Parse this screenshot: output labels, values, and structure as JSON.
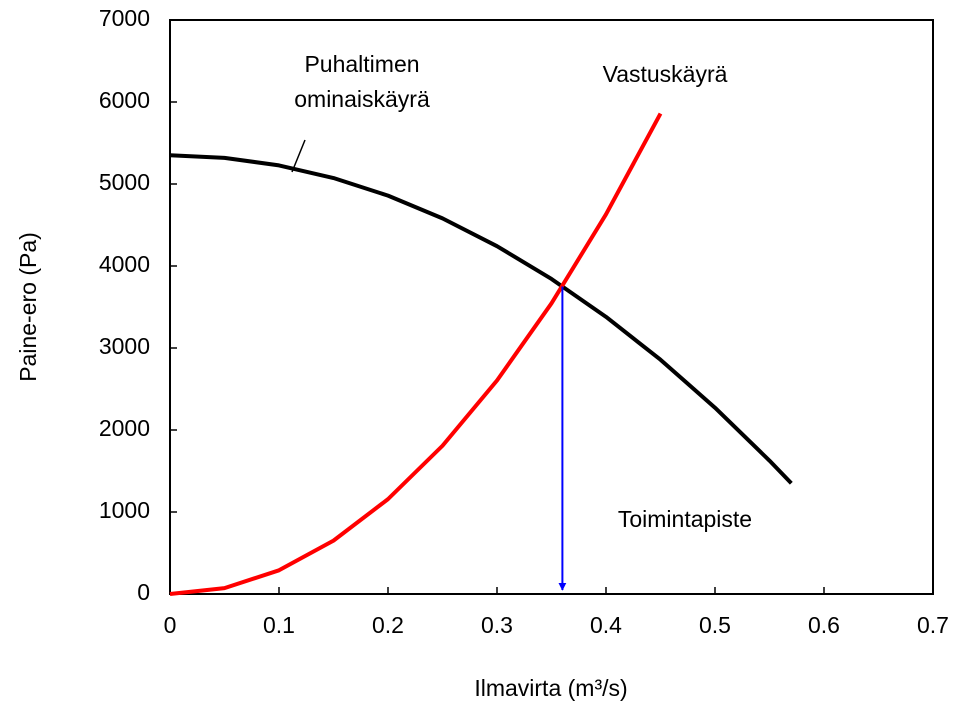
{
  "chart_data": {
    "type": "line",
    "xlabel": "Ilmavirta (m³/s)",
    "ylabel": "Paine-ero (Pa)",
    "xlim": [
      0,
      0.7
    ],
    "xticks": [
      0,
      0.1,
      0.2,
      0.3,
      0.4,
      0.5,
      0.6,
      0.7
    ],
    "ylim": [
      0,
      7000
    ],
    "yticks": [
      0,
      1000,
      2000,
      3000,
      4000,
      5000,
      6000,
      7000
    ],
    "grid": false,
    "series": [
      {
        "color": "#000000",
        "x": [
          0,
          0.05,
          0.1,
          0.15,
          0.2,
          0.25,
          0.3,
          0.35,
          0.4,
          0.45,
          0.5,
          0.55,
          0.57
        ],
        "values": [
          5350,
          5319,
          5227,
          5073,
          4858,
          4581,
          4242,
          3842,
          3380,
          2857,
          2272,
          1626,
          1350
        ]
      },
      {
        "name": "Vastuskäyrä",
        "color": "#ff0000",
        "x": [
          0,
          0.05,
          0.1,
          0.15,
          0.2,
          0.25,
          0.3,
          0.35,
          0.4,
          0.45
        ],
        "values": [
          0,
          72,
          289,
          651,
          1157,
          1808,
          2604,
          3545,
          4630,
          5859
        ]
      }
    ],
    "fan_label": [
      "Puhaltimen",
      "ominaiskäyrä"
    ],
    "operating_point": {
      "label": "Toimintapiste",
      "x": 0.36,
      "y": 3750,
      "color": "#0000ff"
    }
  }
}
